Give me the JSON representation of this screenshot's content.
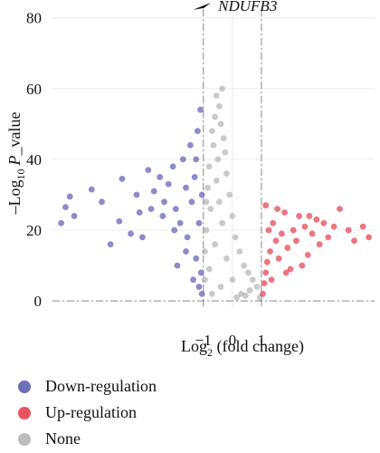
{
  "chart_data": {
    "type": "scatter",
    "title": "",
    "xlabel_main": "Log",
    "xlabel_sub": "2",
    "xlabel_rest": " (fold change)",
    "ylabel_pre": "–Log",
    "ylabel_sub": "10",
    "ylabel_italic": "P",
    "ylabel_rest": "_value",
    "x_ticks": [
      {
        "value": -1,
        "label": "−1"
      },
      {
        "value": 0,
        "label": "0"
      },
      {
        "value": 1,
        "label": "1"
      }
    ],
    "y_ticks": [
      {
        "value": 0,
        "label": "0"
      },
      {
        "value": 20,
        "label": "20"
      },
      {
        "value": 40,
        "label": "40"
      },
      {
        "value": 60,
        "label": "60"
      },
      {
        "value": 80,
        "label": "80"
      }
    ],
    "xlim": [
      -6.2,
      4.9
    ],
    "ylim": [
      -2,
      84
    ],
    "grid": true,
    "threshold_lines": {
      "x": [
        -1,
        1
      ],
      "y": 0
    },
    "annotation": {
      "label": "NDUFB3",
      "x": -1.05,
      "y": 83
    },
    "legend_position": "bottom-left",
    "series": [
      {
        "name": "Down-regulation",
        "color": "#3d3fa3",
        "points": [
          [
            -5.9,
            22
          ],
          [
            -5.75,
            26.5
          ],
          [
            -5.6,
            29.5
          ],
          [
            -5.45,
            24
          ],
          [
            -4.85,
            31.5
          ],
          [
            -4.5,
            28
          ],
          [
            -4.2,
            16
          ],
          [
            -3.9,
            22.5
          ],
          [
            -3.8,
            34.5
          ],
          [
            -3.5,
            19
          ],
          [
            -3.3,
            30
          ],
          [
            -3.1,
            18
          ],
          [
            -2.9,
            37
          ],
          [
            -2.7,
            31
          ],
          [
            -2.5,
            35
          ],
          [
            -2.35,
            28
          ],
          [
            -2.2,
            33
          ],
          [
            -2.05,
            38
          ],
          [
            -1.95,
            26
          ],
          [
            -1.8,
            22
          ],
          [
            -1.7,
            40
          ],
          [
            -1.6,
            32
          ],
          [
            -1.55,
            18
          ],
          [
            -1.45,
            44
          ],
          [
            -1.4,
            28
          ],
          [
            -1.3,
            35
          ],
          [
            -1.25,
            12
          ],
          [
            -1.2,
            48
          ],
          [
            -1.15,
            22
          ],
          [
            -1.1,
            54
          ],
          [
            -1.08,
            8
          ],
          [
            -1.05,
            30
          ],
          [
            -1.25,
            40
          ],
          [
            -1.6,
            14
          ],
          [
            -2.0,
            20
          ],
          [
            -2.4,
            24
          ],
          [
            -2.8,
            26
          ],
          [
            -3.2,
            25
          ],
          [
            -1.9,
            10
          ],
          [
            -1.35,
            6
          ],
          [
            -1.15,
            4
          ],
          [
            -1.05,
            2
          ]
        ]
      },
      {
        "name": "Up-regulation",
        "color": "#e0192b",
        "points": [
          [
            1.05,
            2
          ],
          [
            1.1,
            5
          ],
          [
            1.15,
            8
          ],
          [
            1.2,
            11
          ],
          [
            1.3,
            14
          ],
          [
            1.25,
            20
          ],
          [
            1.4,
            22
          ],
          [
            1.5,
            17
          ],
          [
            1.6,
            12
          ],
          [
            1.7,
            19
          ],
          [
            1.8,
            25
          ],
          [
            1.9,
            15
          ],
          [
            2.0,
            9
          ],
          [
            2.1,
            20
          ],
          [
            2.2,
            17
          ],
          [
            2.3,
            24
          ],
          [
            2.5,
            21
          ],
          [
            2.6,
            13
          ],
          [
            2.75,
            19
          ],
          [
            2.9,
            23
          ],
          [
            3.0,
            16
          ],
          [
            3.15,
            22
          ],
          [
            3.3,
            18
          ],
          [
            3.5,
            21
          ],
          [
            3.7,
            26
          ],
          [
            4.0,
            20
          ],
          [
            4.2,
            17
          ],
          [
            4.5,
            21
          ],
          [
            4.7,
            18
          ],
          [
            2.4,
            10
          ],
          [
            1.15,
            27
          ],
          [
            1.35,
            6
          ],
          [
            1.55,
            26
          ],
          [
            1.85,
            8
          ],
          [
            2.65,
            24
          ]
        ]
      },
      {
        "name": "None",
        "color": "#a6a6a6",
        "points": [
          [
            -0.35,
            60
          ],
          [
            -0.45,
            55
          ],
          [
            -0.55,
            58
          ],
          [
            -0.6,
            52
          ],
          [
            -0.4,
            50
          ],
          [
            -0.7,
            48
          ],
          [
            -0.3,
            46
          ],
          [
            -0.65,
            44
          ],
          [
            -0.25,
            42
          ],
          [
            -0.5,
            40
          ],
          [
            -0.8,
            38
          ],
          [
            -0.2,
            36
          ],
          [
            -0.55,
            34
          ],
          [
            -0.85,
            32
          ],
          [
            -0.1,
            30
          ],
          [
            -0.45,
            28
          ],
          [
            -0.75,
            26
          ],
          [
            0.0,
            24
          ],
          [
            -0.35,
            22
          ],
          [
            -0.9,
            20
          ],
          [
            0.1,
            18
          ],
          [
            -0.6,
            16
          ],
          [
            0.25,
            14
          ],
          [
            -0.2,
            12
          ],
          [
            0.4,
            10
          ],
          [
            -0.8,
            9
          ],
          [
            0.55,
            8
          ],
          [
            0.0,
            6
          ],
          [
            0.7,
            6
          ],
          [
            -0.4,
            4
          ],
          [
            0.85,
            4
          ],
          [
            0.3,
            2
          ],
          [
            -0.7,
            2
          ],
          [
            0.15,
            1
          ],
          [
            0.95,
            1
          ],
          [
            -0.95,
            6
          ],
          [
            -0.95,
            14
          ],
          [
            -0.9,
            28
          ],
          [
            0.6,
            3
          ],
          [
            0.45,
            1.5
          ]
        ]
      }
    ]
  },
  "legend": {
    "items": [
      {
        "label": "Down-regulation",
        "color": "#3d3fa3"
      },
      {
        "label": "Up-regulation",
        "color": "#e0192b"
      },
      {
        "label": "None",
        "color": "#a6a6a6"
      }
    ]
  }
}
